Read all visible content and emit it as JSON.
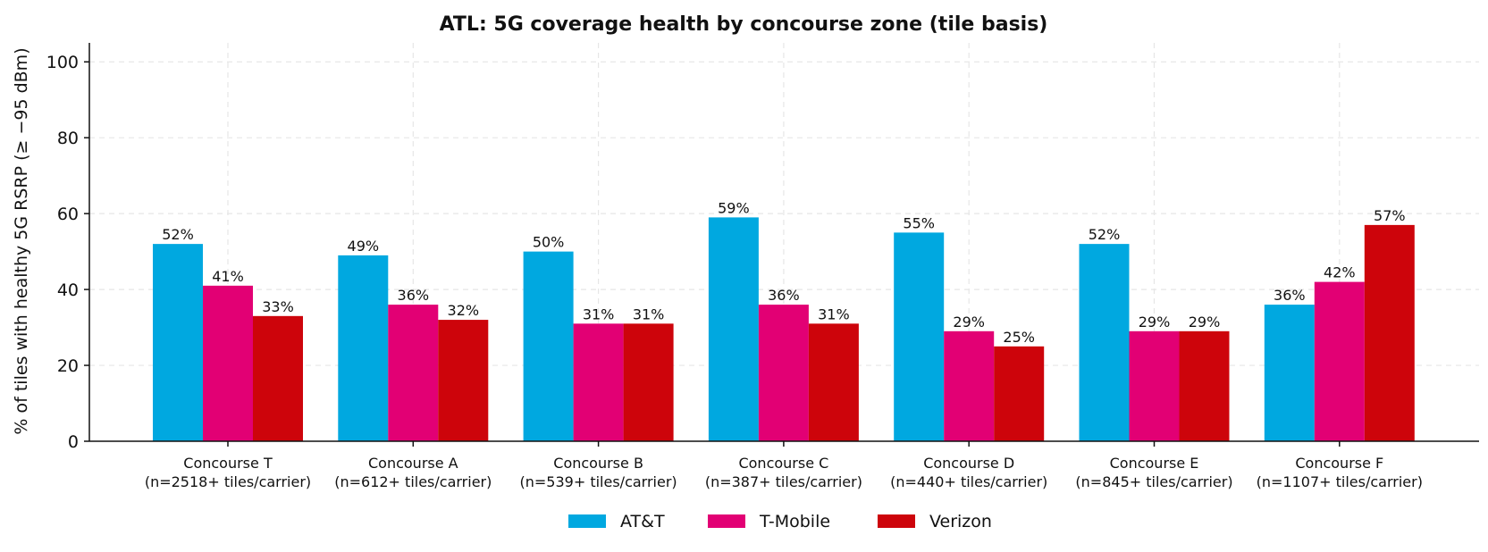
{
  "chart_data": {
    "type": "bar",
    "title": "ATL: 5G coverage health by concourse zone (tile basis)",
    "xlabel": "",
    "ylabel": "% of tiles with healthy 5G RSRP (≥ −95 dBm)",
    "ylim": [
      0,
      105
    ],
    "yticks": [
      0,
      20,
      40,
      60,
      80,
      100
    ],
    "grid": true,
    "legend": "bottom-center",
    "categories": [
      {
        "name": "Concourse T",
        "sample": "(n=2518+ tiles/carrier)"
      },
      {
        "name": "Concourse A",
        "sample": "(n=612+ tiles/carrier)"
      },
      {
        "name": "Concourse B",
        "sample": "(n=539+ tiles/carrier)"
      },
      {
        "name": "Concourse C",
        "sample": "(n=387+ tiles/carrier)"
      },
      {
        "name": "Concourse D",
        "sample": "(n=440+ tiles/carrier)"
      },
      {
        "name": "Concourse E",
        "sample": "(n=845+ tiles/carrier)"
      },
      {
        "name": "Concourse F",
        "sample": "(n=1107+ tiles/carrier)"
      }
    ],
    "series": [
      {
        "name": "AT&T",
        "color": "#00a8e0",
        "values": [
          52,
          49,
          50,
          59,
          55,
          52,
          36
        ],
        "labels": [
          "52%",
          "49%",
          "50%",
          "59%",
          "55%",
          "52%",
          "36%"
        ]
      },
      {
        "name": "T-Mobile",
        "color": "#e20074",
        "values": [
          41,
          36,
          31,
          36,
          29,
          29,
          42
        ],
        "labels": [
          "41%",
          "36%",
          "31%",
          "36%",
          "29%",
          "29%",
          "42%"
        ]
      },
      {
        "name": "Verizon",
        "color": "#cd040b",
        "values": [
          33,
          32,
          31,
          31,
          25,
          29,
          57
        ],
        "labels": [
          "33%",
          "32%",
          "31%",
          "31%",
          "25%",
          "29%",
          "57%"
        ]
      }
    ]
  }
}
